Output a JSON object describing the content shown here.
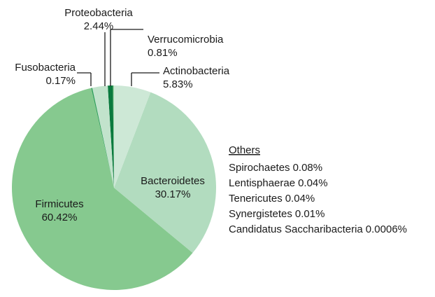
{
  "chart_data": {
    "type": "pie",
    "categories": [
      "Actinobacteria",
      "Bacteroidetes",
      "Firmicutes",
      "Fusobacteria",
      "Proteobacteria",
      "Verrucomicrobia"
    ],
    "values": [
      5.83,
      30.17,
      60.42,
      0.17,
      2.44,
      0.81
    ],
    "value_labels": [
      "5.83%",
      "30.17%",
      "60.42%",
      "0.17%",
      "2.44%",
      "0.81%"
    ],
    "colors": [
      "#cde8d6",
      "#b2dcbf",
      "#86c98f",
      "#2e9e5a",
      "#c2e3cc",
      "#0a7a3e"
    ],
    "others": {
      "title": "Others",
      "categories": [
        "Spirochaetes",
        "Lentisphaerae",
        "Tenericutes",
        "Synergistetes",
        "Candidatus Saccharibacteria"
      ],
      "values": [
        0.08,
        0.04,
        0.04,
        0.01,
        0.0006
      ],
      "value_labels": [
        "0.08%",
        "0.04%",
        "0.04%",
        "0.01%",
        "0.0006%"
      ],
      "color": "#86c98f"
    }
  }
}
